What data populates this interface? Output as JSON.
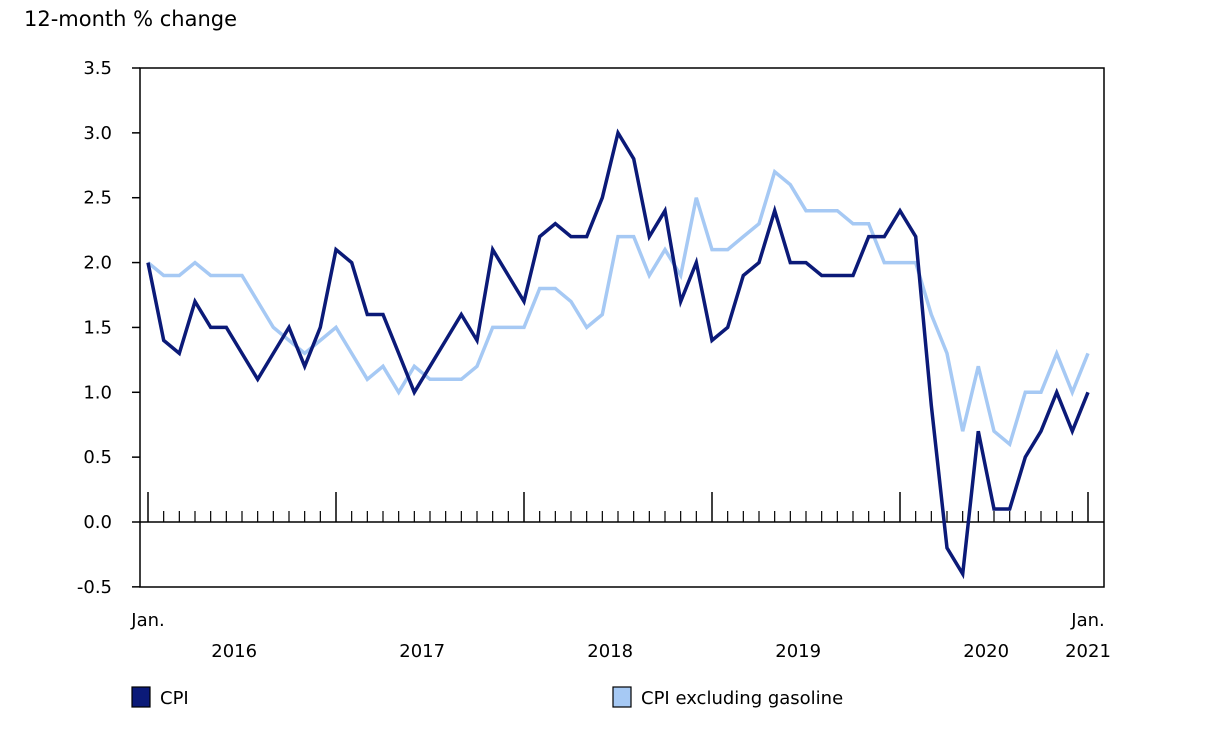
{
  "chart_data": {
    "type": "line",
    "ylabel": "12-month % change",
    "ylim": [
      -0.5,
      3.5
    ],
    "yticks": [
      "3.5",
      "3.0",
      "2.5",
      "2.0",
      "1.5",
      "1.0",
      "0.5",
      "0.0",
      "-0.5"
    ],
    "x_start": "2016-01",
    "x_end": "2021-01",
    "x_first_label": "Jan.",
    "x_last_label": "Jan.",
    "year_labels": [
      "2016",
      "2017",
      "2018",
      "2019",
      "2020",
      "2021"
    ],
    "grid": false,
    "legend_position": "bottom",
    "series": [
      {
        "name": "CPI",
        "color": "#0b1a78",
        "values": [
          2.0,
          1.4,
          1.3,
          1.7,
          1.5,
          1.5,
          1.3,
          1.1,
          1.3,
          1.5,
          1.2,
          1.5,
          2.1,
          2.0,
          1.6,
          1.6,
          1.3,
          1.0,
          1.2,
          1.4,
          1.6,
          1.4,
          2.1,
          1.9,
          1.7,
          2.2,
          2.3,
          2.2,
          2.2,
          2.5,
          3.0,
          2.8,
          2.2,
          2.4,
          1.7,
          2.0,
          1.4,
          1.5,
          1.9,
          2.0,
          2.4,
          2.0,
          2.0,
          1.9,
          1.9,
          1.9,
          2.2,
          2.2,
          2.4,
          2.2,
          0.9,
          -0.2,
          -0.4,
          0.7,
          0.1,
          0.1,
          0.5,
          0.7,
          1.0,
          0.7,
          1.0
        ]
      },
      {
        "name": "CPI excluding gasoline",
        "color": "#a6c9f4",
        "values": [
          2.0,
          1.9,
          1.9,
          2.0,
          1.9,
          1.9,
          1.9,
          1.7,
          1.5,
          1.4,
          1.3,
          1.4,
          1.5,
          1.3,
          1.1,
          1.2,
          1.0,
          1.2,
          1.1,
          1.1,
          1.1,
          1.2,
          1.5,
          1.5,
          1.5,
          1.8,
          1.8,
          1.7,
          1.5,
          1.6,
          2.2,
          2.2,
          1.9,
          2.1,
          1.9,
          2.5,
          2.1,
          2.1,
          2.2,
          2.3,
          2.7,
          2.6,
          2.4,
          2.4,
          2.4,
          2.3,
          2.3,
          2.0,
          2.0,
          2.0,
          1.6,
          1.3,
          0.7,
          1.2,
          0.7,
          0.6,
          1.0,
          1.0,
          1.3,
          1.0,
          1.3
        ]
      }
    ]
  }
}
